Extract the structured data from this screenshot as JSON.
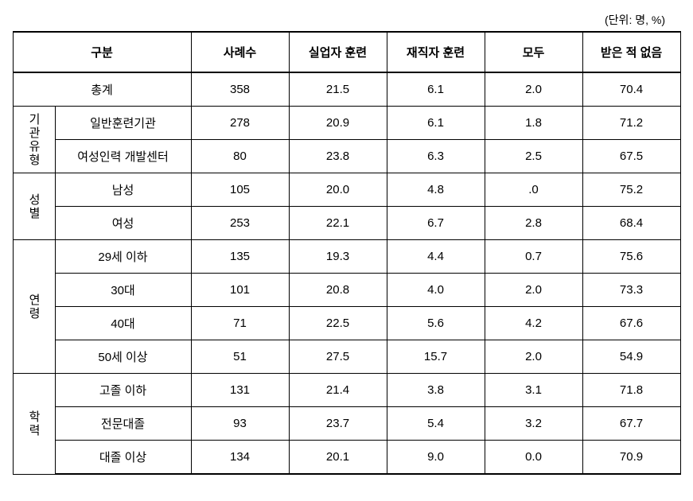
{
  "unit_label": "(단위: 명, %)",
  "columns": {
    "category": "구분",
    "cases": "사례수",
    "unemployed": "실업자 훈련",
    "employed": "재직자 훈련",
    "both": "모두",
    "none": "받은 적 없음"
  },
  "total": {
    "label": "총계",
    "cases": "358",
    "unemployed": "21.5",
    "employed": "6.1",
    "both": "2.0",
    "none": "70.4"
  },
  "groups": [
    {
      "label": "기관유형",
      "rows": [
        {
          "label": "일반훈련기관",
          "cases": "278",
          "unemployed": "20.9",
          "employed": "6.1",
          "both": "1.8",
          "none": "71.2"
        },
        {
          "label": "여성인력 개발센터",
          "cases": "80",
          "unemployed": "23.8",
          "employed": "6.3",
          "both": "2.5",
          "none": "67.5"
        }
      ]
    },
    {
      "label": "성별",
      "rows": [
        {
          "label": "남성",
          "cases": "105",
          "unemployed": "20.0",
          "employed": "4.8",
          "both": ".0",
          "none": "75.2"
        },
        {
          "label": "여성",
          "cases": "253",
          "unemployed": "22.1",
          "employed": "6.7",
          "both": "2.8",
          "none": "68.4"
        }
      ]
    },
    {
      "label": "연령",
      "rows": [
        {
          "label": "29세 이하",
          "cases": "135",
          "unemployed": "19.3",
          "employed": "4.4",
          "both": "0.7",
          "none": "75.6"
        },
        {
          "label": "30대",
          "cases": "101",
          "unemployed": "20.8",
          "employed": "4.0",
          "both": "2.0",
          "none": "73.3"
        },
        {
          "label": "40대",
          "cases": "71",
          "unemployed": "22.5",
          "employed": "5.6",
          "both": "4.2",
          "none": "67.6"
        },
        {
          "label": "50세 이상",
          "cases": "51",
          "unemployed": "27.5",
          "employed": "15.7",
          "both": "2.0",
          "none": "54.9"
        }
      ]
    },
    {
      "label": "학력",
      "rows": [
        {
          "label": "고졸 이하",
          "cases": "131",
          "unemployed": "21.4",
          "employed": "3.8",
          "both": "3.1",
          "none": "71.8"
        },
        {
          "label": "전문대졸",
          "cases": "93",
          "unemployed": "23.7",
          "employed": "5.4",
          "both": "3.2",
          "none": "67.7"
        },
        {
          "label": "대졸 이상",
          "cases": "134",
          "unemployed": "20.1",
          "employed": "9.0",
          "both": "0.0",
          "none": "70.9"
        }
      ]
    }
  ]
}
